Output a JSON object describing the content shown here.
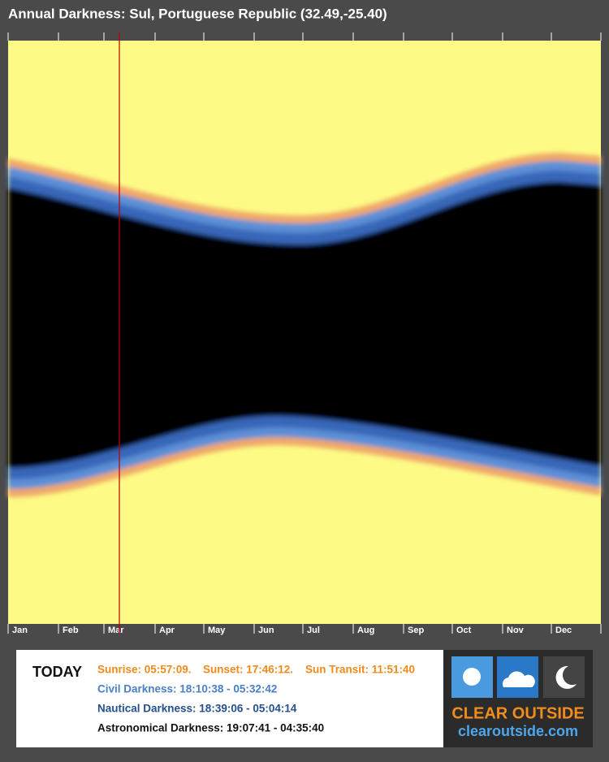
{
  "header": {
    "title": "Annual Darkness: Sul, Portuguese Republic (32.49,-25.40)"
  },
  "months": [
    "Jan",
    "Feb",
    "Mar",
    "Apr",
    "May",
    "Jun",
    "Jul",
    "Aug",
    "Sep",
    "Oct",
    "Nov",
    "Dec"
  ],
  "today": {
    "label": "TODAY",
    "sunrise": "Sunrise: 05:57:09.",
    "sunset": "Sunset: 17:46:12.",
    "transit": "Sun Transit: 11:51:40",
    "civil": "Civil Darkness: 18:10:38 - 05:32:42",
    "nautical": "Nautical Darkness: 18:39:06 - 05:04:14",
    "astronomical": "Astronomical Darkness: 19:07:41 - 04:35:40"
  },
  "logo": {
    "name": "CLEAR OUTSIDE",
    "url": "clearoutside.com"
  }
}
